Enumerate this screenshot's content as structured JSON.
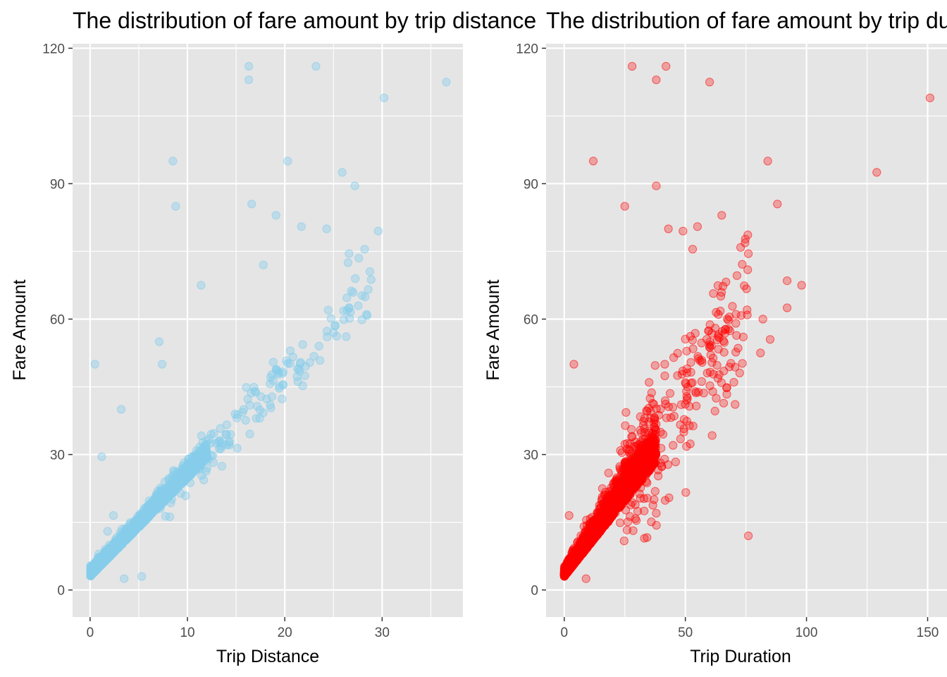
{
  "colors": {
    "panel_background": "#e5e5e5",
    "grid": "#ffffff",
    "tick_text": "#4d4d4d"
  },
  "chart_data": [
    {
      "type": "scatter",
      "title": "The distribution of fare amount by trip distance",
      "xlabel": "Trip Distance",
      "ylabel": "Fare Amount",
      "xlim": [
        -1.8,
        38.3
      ],
      "ylim": [
        -6,
        121
      ],
      "xticks": [
        0,
        10,
        20,
        30
      ],
      "yticks": [
        0,
        30,
        60,
        90,
        120
      ],
      "point_color": "#87ceeb",
      "point_alpha": 0.4,
      "grid": true,
      "legend": "none",
      "main_band": {
        "slope": 2.2,
        "intercept": 3.2,
        "x_dense_max": 12,
        "x_sparse_max": 29,
        "n_dense": 2600,
        "n_sparse": 160
      },
      "outliers": [
        [
          16.3,
          116
        ],
        [
          16.3,
          113
        ],
        [
          23.2,
          116
        ],
        [
          36.6,
          112.5
        ],
        [
          30.2,
          109
        ],
        [
          8.5,
          95
        ],
        [
          20.3,
          95
        ],
        [
          25.9,
          92.5
        ],
        [
          27.2,
          89.5
        ],
        [
          8.8,
          85
        ],
        [
          16.6,
          85.5
        ],
        [
          19.1,
          83
        ],
        [
          21.7,
          80.5
        ],
        [
          24.3,
          80
        ],
        [
          29.6,
          79.5
        ],
        [
          28.2,
          75.5
        ],
        [
          26.6,
          74.5
        ],
        [
          27.6,
          73.5
        ],
        [
          17.8,
          72
        ],
        [
          26.5,
          72.5
        ],
        [
          11.4,
          67.5
        ],
        [
          0.5,
          50
        ],
        [
          7.1,
          55
        ],
        [
          7.4,
          50
        ],
        [
          3.2,
          40
        ],
        [
          3.5,
          2.5
        ],
        [
          5.3,
          3
        ],
        [
          1.2,
          29.5
        ],
        [
          1.8,
          13
        ],
        [
          2.4,
          16.5
        ]
      ]
    },
    {
      "type": "scatter",
      "title": "The distribution of fare amount by trip duration",
      "xlabel": "Trip Duration",
      "ylabel": "Fare Amount",
      "xlim": [
        -7.5,
        158
      ],
      "ylim": [
        -6,
        121
      ],
      "xticks": [
        0,
        50,
        100,
        150
      ],
      "yticks": [
        0,
        30,
        60,
        90,
        120
      ],
      "point_color": "#ff0000",
      "point_alpha": 0.3,
      "grid": true,
      "legend": "none",
      "main_band": {
        "slope": 0.7,
        "intercept": 3.2,
        "x_dense_max": 38,
        "x_sparse_max": 76,
        "n_dense": 2600,
        "n_sparse": 240
      },
      "outliers": [
        [
          28,
          116
        ],
        [
          42,
          116
        ],
        [
          38,
          113
        ],
        [
          60,
          112.5
        ],
        [
          151,
          109
        ],
        [
          12,
          95
        ],
        [
          84,
          95
        ],
        [
          129,
          92.5
        ],
        [
          38,
          89.5
        ],
        [
          88,
          85.5
        ],
        [
          25,
          85
        ],
        [
          65,
          83
        ],
        [
          43,
          80
        ],
        [
          49,
          79.5
        ],
        [
          55,
          80.5
        ],
        [
          53,
          75.5
        ],
        [
          76,
          74.5
        ],
        [
          92,
          68.5
        ],
        [
          98,
          67.5
        ],
        [
          92,
          62.5
        ],
        [
          82,
          60
        ],
        [
          81,
          52.5
        ],
        [
          85,
          55.5
        ],
        [
          4,
          50
        ],
        [
          2,
          16.5
        ],
        [
          76,
          12
        ],
        [
          9,
          2.5
        ],
        [
          38,
          17
        ],
        [
          33,
          17.5
        ],
        [
          70,
          46
        ]
      ]
    }
  ]
}
